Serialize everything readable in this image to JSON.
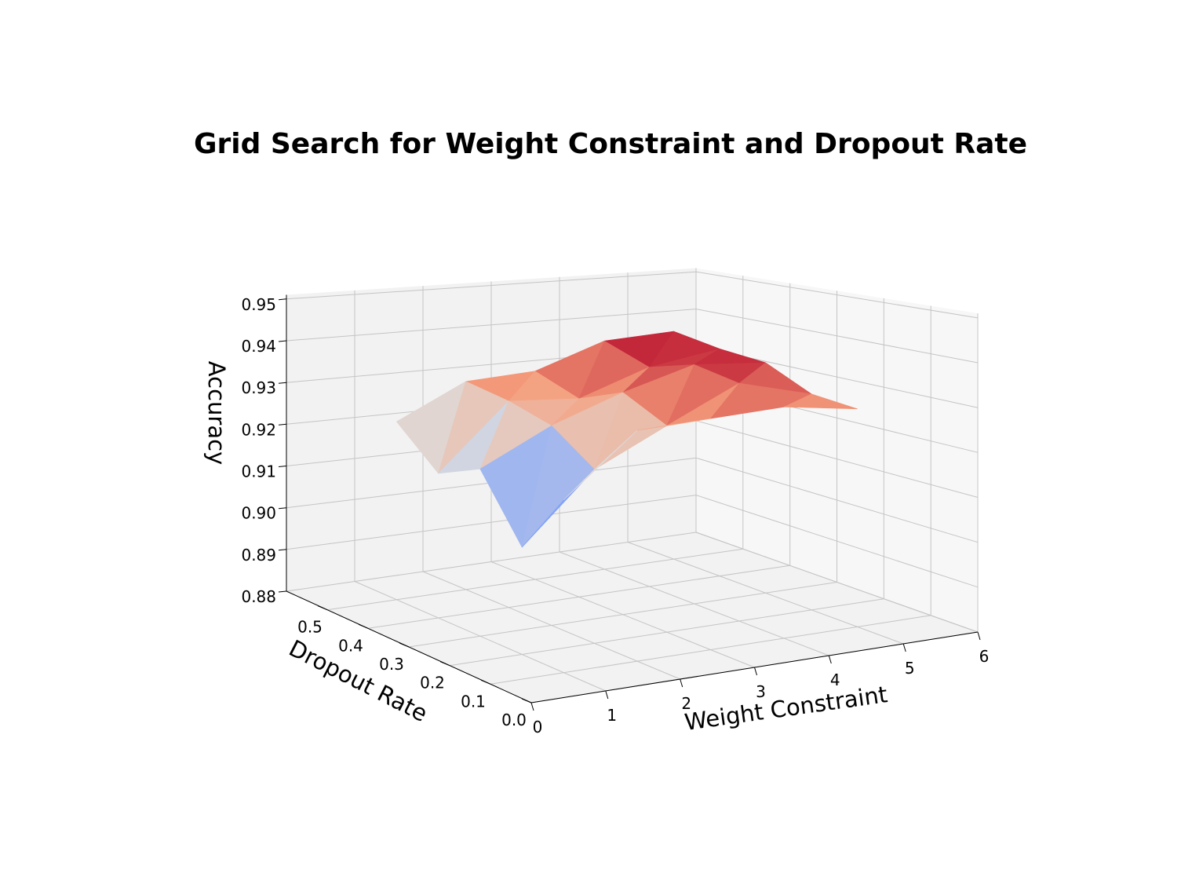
{
  "chart_data": {
    "type": "surface3d",
    "title": "Grid Search for Weight Constraint and Dropout Rate",
    "xlabel": "Weight Constraint",
    "ylabel": "Dropout Rate",
    "zlabel": "Accuracy",
    "x_ticks": [
      "0",
      "1",
      "2",
      "3",
      "4",
      "5",
      "6"
    ],
    "y_ticks": [
      "0.0",
      "0.1",
      "0.2",
      "0.3",
      "0.4",
      "0.5"
    ],
    "z_ticks": [
      "0.88",
      "0.89",
      "0.90",
      "0.91",
      "0.92",
      "0.93",
      "0.94",
      "0.95"
    ],
    "xlim": [
      0,
      6
    ],
    "ylim": [
      0,
      0.6
    ],
    "zlim": [
      0.88,
      0.951
    ],
    "grid": true,
    "colormap": "coolwarm",
    "weight_constraint": [
      1,
      2,
      3,
      4,
      5
    ],
    "dropout_rate": [
      0.1,
      0.2,
      0.3,
      0.4,
      0.5
    ],
    "accuracy": [
      [
        0.916,
        0.929,
        0.93,
        0.931,
        0.929
      ],
      [
        0.903,
        0.918,
        0.926,
        0.934,
        0.93
      ],
      [
        0.917,
        0.925,
        0.931,
        0.936,
        0.935
      ],
      [
        0.913,
        0.928,
        0.927,
        0.933,
        0.936
      ],
      [
        0.922,
        0.93,
        0.931,
        0.937,
        0.938
      ]
    ]
  }
}
